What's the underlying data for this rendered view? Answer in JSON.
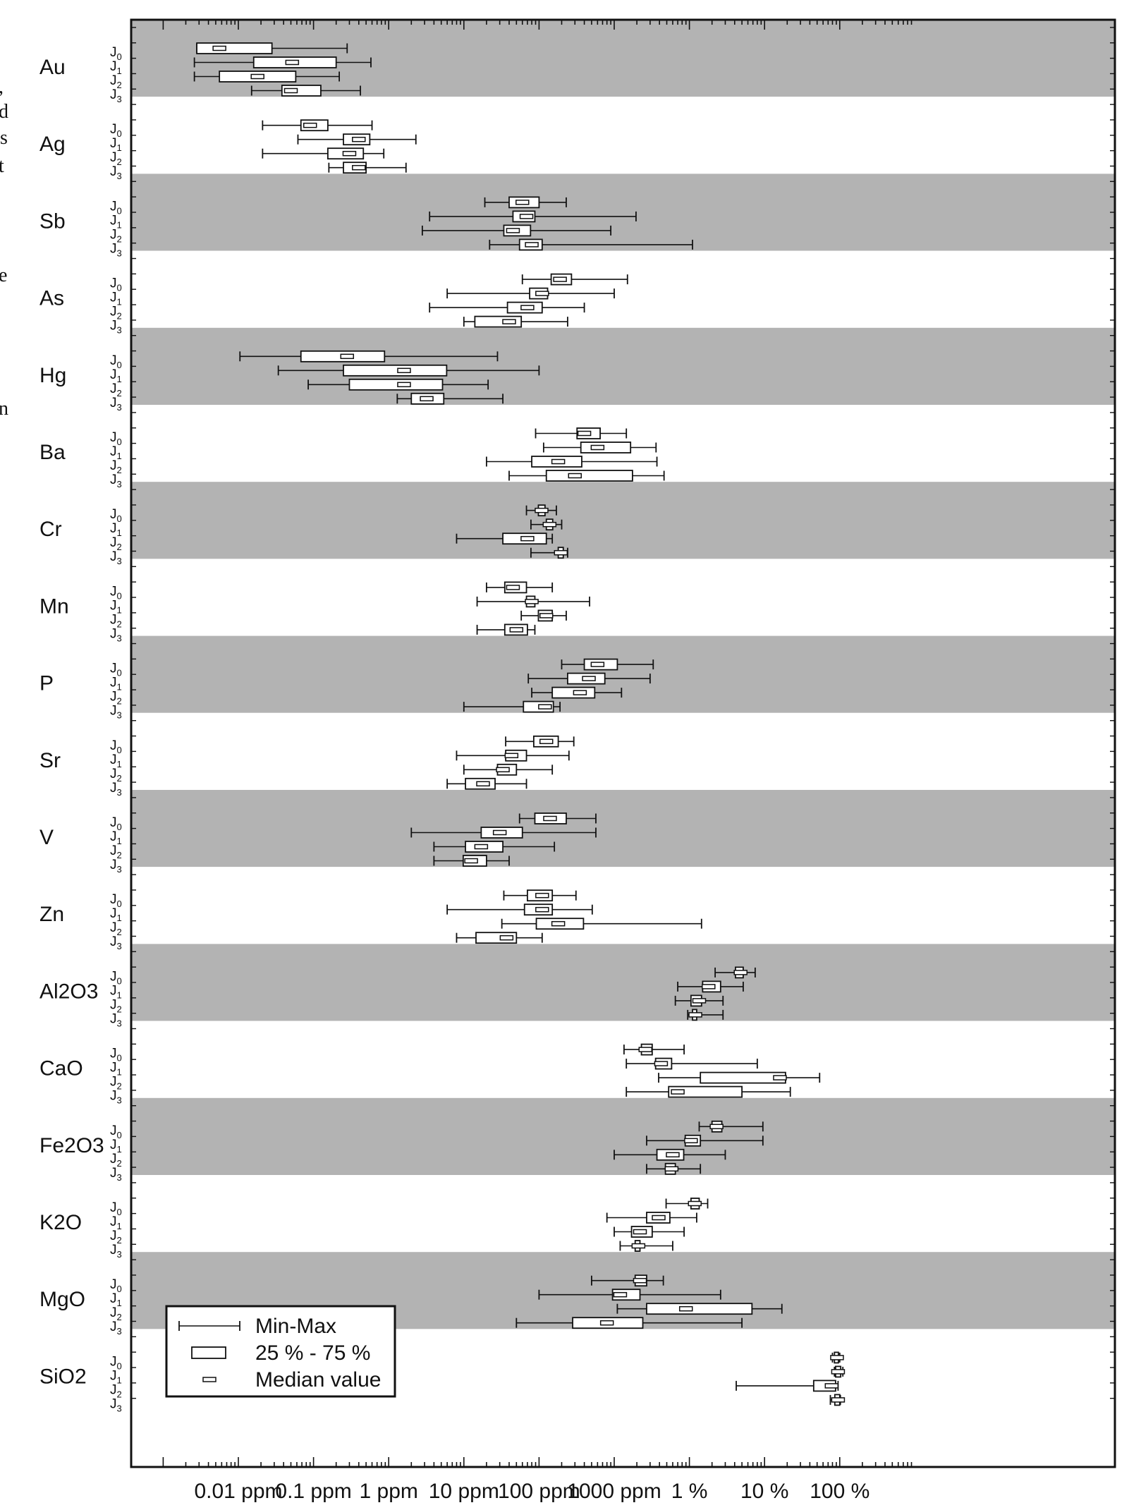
{
  "chart_data": {
    "type": "boxplot",
    "x_scale": "log",
    "xlim": [
      0.001,
      1500000
    ],
    "x_ticks": [
      {
        "value": 0.01,
        "label": "0.01 ppm"
      },
      {
        "value": 0.1,
        "label": "0.1 ppm"
      },
      {
        "value": 1,
        "label": "1 ppm"
      },
      {
        "value": 10,
        "label": "10 ppm"
      },
      {
        "value": 100,
        "label": "100 ppm"
      },
      {
        "value": 1000,
        "label": "1000 ppm"
      },
      {
        "value": 10000,
        "label": "1 %"
      },
      {
        "value": 100000,
        "label": "10 %"
      },
      {
        "value": 1000000,
        "label": "100 %"
      }
    ],
    "groups": [
      "J0",
      "J1",
      "J2",
      "J3"
    ],
    "group_labels": [
      {
        "main": "J",
        "sub": "0"
      },
      {
        "main": "J",
        "sub": "1"
      },
      {
        "main": "J",
        "sub": "2"
      },
      {
        "main": "J",
        "sub": "3"
      }
    ],
    "legend": {
      "position": "bottom-left",
      "items": [
        {
          "kind": "whisker",
          "label": "Min-Max"
        },
        {
          "kind": "box",
          "label": "25 % - 75 %"
        },
        {
          "kind": "median",
          "label": "Median value"
        }
      ]
    },
    "band_colors": {
      "shaded": "#b3b3b3",
      "plain": "#ffffff"
    },
    "elements": [
      {
        "name": "Au",
        "shaded": true,
        "series": [
          [
            0.0028,
            0.0028,
            0.0056,
            0.028,
            0.28
          ],
          [
            0.0026,
            0.016,
            0.052,
            0.2,
            0.58
          ],
          [
            0.0026,
            0.0056,
            0.018,
            0.058,
            0.22
          ],
          [
            0.015,
            0.038,
            0.05,
            0.125,
            0.42
          ]
        ]
      },
      {
        "name": "Ag",
        "shaded": true,
        "is_plain": true,
        "series": [
          [
            0.021,
            0.068,
            0.09,
            0.155,
            0.6
          ],
          [
            0.062,
            0.25,
            0.4,
            0.56,
            2.3
          ],
          [
            0.021,
            0.155,
            0.3,
            0.46,
            0.86
          ],
          [
            0.16,
            0.25,
            0.4,
            0.5,
            1.7
          ]
        ]
      },
      {
        "name": "Sb",
        "shaded": true,
        "series": [
          [
            19,
            40,
            60,
            100,
            230
          ],
          [
            3.5,
            45,
            68,
            88,
            1950
          ],
          [
            2.8,
            34,
            45,
            77,
            900
          ],
          [
            22,
            55,
            80,
            110,
            11000
          ]
        ]
      },
      {
        "name": "As",
        "shaded": false,
        "series": [
          [
            60,
            145,
            190,
            270,
            1500
          ],
          [
            6,
            75,
            110,
            130,
            1000
          ],
          [
            3.5,
            38,
            70,
            110,
            400
          ],
          [
            10,
            14,
            40,
            58,
            240
          ]
        ]
      },
      {
        "name": "Hg",
        "shaded": true,
        "series": [
          [
            0.0105,
            0.068,
            0.28,
            0.88,
            28
          ],
          [
            0.034,
            0.25,
            1.6,
            5.9,
            100
          ],
          [
            0.085,
            0.3,
            1.6,
            5.2,
            21
          ],
          [
            1.3,
            2,
            3.2,
            5.4,
            33
          ]
        ]
      },
      {
        "name": "Ba",
        "shaded": false,
        "series": [
          [
            90,
            320,
            400,
            650,
            1450
          ],
          [
            115,
            360,
            600,
            1650,
            3600
          ],
          [
            20,
            80,
            180,
            370,
            3700
          ],
          [
            40,
            125,
            300,
            1750,
            4600
          ]
        ]
      },
      {
        "name": "Cr",
        "shaded": true,
        "series": [
          [
            68,
            98,
            108,
            120,
            170
          ],
          [
            78,
            125,
            138,
            152,
            200
          ],
          [
            8,
            33,
            70,
            125,
            150
          ],
          [
            78,
            180,
            195,
            210,
            240
          ]
        ]
      },
      {
        "name": "Mn",
        "shaded": false,
        "series": [
          [
            20,
            35,
            45,
            68,
            150
          ],
          [
            15,
            68,
            80,
            88,
            470
          ],
          [
            58,
            98,
            125,
            150,
            230
          ],
          [
            15,
            35,
            50,
            70,
            88
          ]
        ]
      },
      {
        "name": "P",
        "shaded": true,
        "series": [
          [
            200,
            400,
            600,
            1100,
            3300
          ],
          [
            72,
            240,
            460,
            750,
            3000
          ],
          [
            80,
            150,
            350,
            550,
            1250
          ],
          [
            10,
            62,
            120,
            155,
            190
          ]
        ]
      },
      {
        "name": "Sr",
        "shaded": false,
        "series": [
          [
            36,
            85,
            125,
            180,
            290
          ],
          [
            8,
            36,
            43,
            68,
            250
          ],
          [
            10,
            28,
            33,
            50,
            150
          ],
          [
            6,
            10.5,
            18,
            26,
            68
          ]
        ]
      },
      {
        "name": "V",
        "shaded": true,
        "series": [
          [
            55,
            88,
            140,
            230,
            570
          ],
          [
            2,
            17,
            30,
            60,
            570
          ],
          [
            4,
            10.5,
            17,
            33,
            160
          ],
          [
            4,
            9.8,
            12.5,
            20,
            40
          ]
        ]
      },
      {
        "name": "Zn",
        "shaded": false,
        "series": [
          [
            34,
            70,
            110,
            150,
            310
          ],
          [
            6,
            64,
            110,
            150,
            510
          ],
          [
            32,
            92,
            180,
            390,
            14500
          ],
          [
            8,
            14.5,
            37,
            50,
            110
          ]
        ]
      },
      {
        "name": "Al2O3",
        "shaded": true,
        "series": [
          [
            22000,
            41000,
            48000,
            52000,
            75000
          ],
          [
            7000,
            15000,
            18000,
            26000,
            52000
          ],
          [
            6500,
            10500,
            13500,
            14500,
            28000
          ],
          [
            9500,
            11000,
            12000,
            12500,
            28000
          ]
        ]
      },
      {
        "name": "CaO",
        "shaded": false,
        "series": [
          [
            1350,
            2300,
            2600,
            3200,
            8500
          ],
          [
            1450,
            3550,
            4200,
            5800,
            80000
          ],
          [
            3900,
            14000,
            160000,
            190000,
            540000
          ],
          [
            1450,
            5300,
            7000,
            50000,
            220000
          ]
        ]
      },
      {
        "name": "Fe2O3",
        "shaded": true,
        "series": [
          [
            13500,
            20000,
            23000,
            27000,
            95000
          ],
          [
            2700,
            8800,
            10500,
            14000,
            95000
          ],
          [
            1000,
            3700,
            6000,
            8400,
            30000
          ],
          [
            2700,
            4800,
            5800,
            6500,
            14000
          ]
        ]
      },
      {
        "name": "K2O",
        "shaded": false,
        "series": [
          [
            4900,
            10500,
            11800,
            13500,
            17500
          ],
          [
            800,
            2700,
            3900,
            5500,
            12500
          ],
          [
            1000,
            1700,
            2200,
            3200,
            8500
          ],
          [
            1200,
            1900,
            2100,
            2200,
            6000
          ]
        ]
      },
      {
        "name": "MgO",
        "shaded": true,
        "series": [
          [
            500,
            1900,
            2200,
            2700,
            4500
          ],
          [
            100,
            950,
            1200,
            2200,
            26000
          ],
          [
            1100,
            2700,
            9000,
            68000,
            170000
          ],
          [
            50,
            280,
            800,
            2400,
            50000
          ]
        ]
      },
      {
        "name": "SiO2",
        "shaded": false,
        "series": [
          [
            800000,
            850000,
            920000,
            960000,
            1000000
          ],
          [
            850000,
            880000,
            950000,
            1030000,
            1100000
          ],
          [
            42000,
            450000,
            780000,
            880000,
            950000
          ],
          [
            750000,
            860000,
            950000,
            1000000,
            1020000
          ]
        ]
      }
    ]
  },
  "page": {
    "left_clip_chars": [
      ",",
      "d",
      "s",
      "t",
      "e",
      "n"
    ]
  }
}
